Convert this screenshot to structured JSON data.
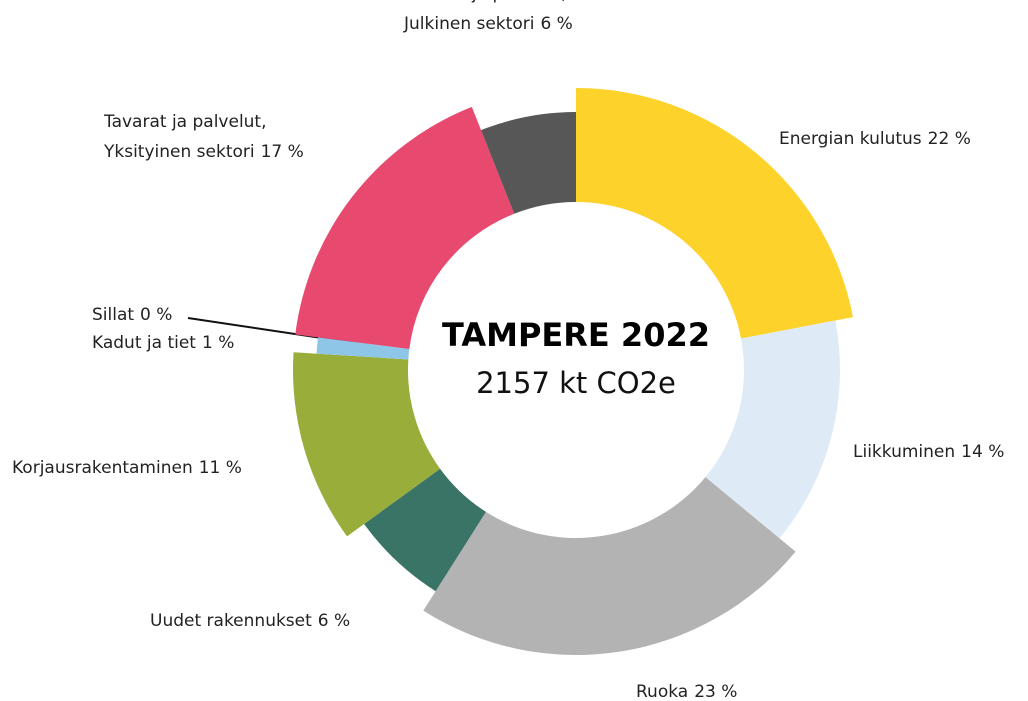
{
  "chart_data": {
    "type": "donut",
    "title": "TAMPERE 2022",
    "subtitle": "2157 kt CO2e",
    "categories": [
      "Energian kulutus",
      "Liikkuminen",
      "Ruoka",
      "Uudet rakennukset",
      "Korjausrakentaminen",
      "Kadut ja tiet",
      "Sillat",
      "Tavarat ja palvelut, Yksityinen sektori",
      "Tavarat ja palvelut, Julkinen sektori"
    ],
    "values": [
      22,
      14,
      23,
      6,
      11,
      1,
      0,
      17,
      6
    ],
    "value_labels": [
      "22 %",
      "14 %",
      "23 %",
      "6 %",
      "11 %",
      "1 %",
      "0 %",
      "17 %",
      "6 %"
    ],
    "colors": [
      "#fdd22b",
      "#deebf7",
      "#b3b3b3",
      "#3a7466",
      "#98ad3a",
      "#8ec6e8",
      "#2b6ca3",
      "#e8496f",
      "#575757"
    ]
  }
}
